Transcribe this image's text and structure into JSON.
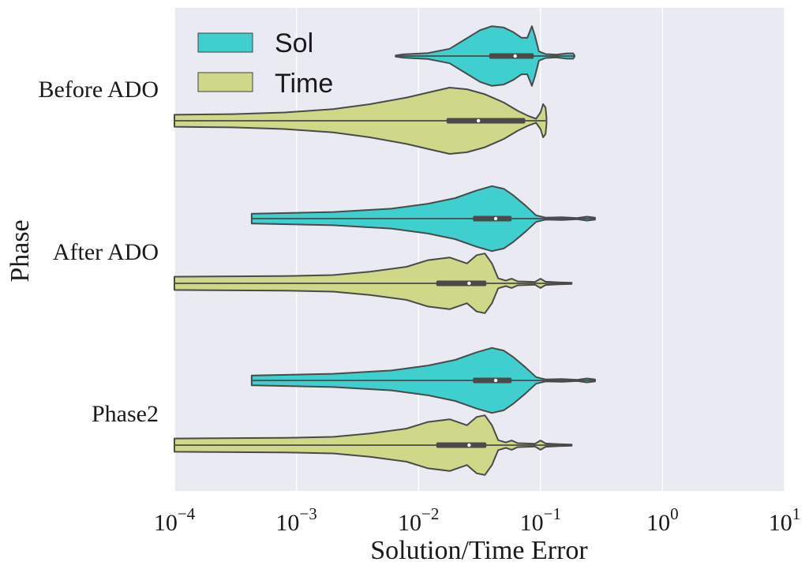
{
  "chart_data": {
    "type": "violin",
    "orientation": "horizontal",
    "xscale": "log",
    "xlabel": "Solution/Time Error",
    "ylabel": "Phase",
    "xlim": [
      0.0001,
      10
    ],
    "x_ticks": [
      {
        "value": 0.0001,
        "base": "10",
        "exp": "−4"
      },
      {
        "value": 0.001,
        "base": "10",
        "exp": "−3"
      },
      {
        "value": 0.01,
        "base": "10",
        "exp": "−2"
      },
      {
        "value": 0.1,
        "base": "10",
        "exp": "−1"
      },
      {
        "value": 1,
        "base": "10",
        "exp": "0"
      },
      {
        "value": 10,
        "base": "10",
        "exp": "1"
      }
    ],
    "grid": true,
    "legend_position": "top-left",
    "colors": {
      "Sol": "#40cfcf",
      "Time": "#cfd789",
      "outline": "#4a4a4a",
      "background": "#e9eaf2",
      "grid": "#ffffff"
    },
    "categories": [
      "Before ADO",
      "After ADO",
      "Phase2"
    ],
    "series": [
      {
        "name": "Sol",
        "groups": [
          {
            "category": "Before ADO",
            "range": [
              0.0065,
              0.19
            ],
            "quartiles": [
              0.038,
              0.062,
              0.088
            ],
            "profile": [
              [
                0.0065,
                0.02
              ],
              [
                0.0075,
                0.05
              ],
              [
                0.012,
                0.09
              ],
              [
                0.018,
                0.22
              ],
              [
                0.024,
                0.5
              ],
              [
                0.032,
                0.78
              ],
              [
                0.04,
                0.9
              ],
              [
                0.05,
                0.86
              ],
              [
                0.06,
                0.72
              ],
              [
                0.07,
                0.55
              ],
              [
                0.078,
                0.55
              ],
              [
                0.085,
                0.9
              ],
              [
                0.09,
                0.62
              ],
              [
                0.097,
                0.14
              ],
              [
                0.11,
                0.06
              ],
              [
                0.135,
                0.04
              ],
              [
                0.165,
                0.08
              ],
              [
                0.185,
                0.08
              ],
              [
                0.19,
                0.02
              ]
            ]
          },
          {
            "category": "After ADO",
            "range": [
              0.00043,
              0.28
            ],
            "quartiles": [
              0.028,
              0.043,
              0.058
            ],
            "profile": [
              [
                0.00043,
                0.15
              ],
              [
                0.00045,
                0.15
              ],
              [
                0.002,
                0.2
              ],
              [
                0.006,
                0.3
              ],
              [
                0.012,
                0.45
              ],
              [
                0.02,
                0.62
              ],
              [
                0.03,
                0.85
              ],
              [
                0.04,
                0.98
              ],
              [
                0.05,
                0.9
              ],
              [
                0.06,
                0.7
              ],
              [
                0.075,
                0.4
              ],
              [
                0.092,
                0.1
              ],
              [
                0.11,
                0.03
              ],
              [
                0.15,
                0.04
              ],
              [
                0.2,
                0.02
              ],
              [
                0.24,
                0.06
              ],
              [
                0.28,
                0.03
              ]
            ]
          },
          {
            "category": "Phase2",
            "range": [
              0.00043,
              0.28
            ],
            "quartiles": [
              0.028,
              0.043,
              0.058
            ],
            "profile": [
              [
                0.00043,
                0.15
              ],
              [
                0.00045,
                0.15
              ],
              [
                0.002,
                0.2
              ],
              [
                0.006,
                0.3
              ],
              [
                0.012,
                0.45
              ],
              [
                0.02,
                0.62
              ],
              [
                0.03,
                0.85
              ],
              [
                0.04,
                0.98
              ],
              [
                0.05,
                0.9
              ],
              [
                0.06,
                0.7
              ],
              [
                0.075,
                0.4
              ],
              [
                0.092,
                0.1
              ],
              [
                0.11,
                0.03
              ],
              [
                0.15,
                0.04
              ],
              [
                0.2,
                0.02
              ],
              [
                0.24,
                0.06
              ],
              [
                0.28,
                0.03
              ]
            ]
          }
        ]
      },
      {
        "name": "Time",
        "groups": [
          {
            "category": "Before ADO",
            "range": [
              0.0001,
              0.11
            ],
            "quartiles": [
              0.017,
              0.031,
              0.075
            ],
            "profile": [
              [
                0.0001,
                0.18
              ],
              [
                0.0003,
                0.2
              ],
              [
                0.0008,
                0.25
              ],
              [
                0.002,
                0.35
              ],
              [
                0.004,
                0.5
              ],
              [
                0.008,
                0.7
              ],
              [
                0.013,
                0.88
              ],
              [
                0.018,
                1.0
              ],
              [
                0.025,
                0.95
              ],
              [
                0.035,
                0.8
              ],
              [
                0.05,
                0.55
              ],
              [
                0.065,
                0.3
              ],
              [
                0.08,
                0.14
              ],
              [
                0.092,
                0.06
              ],
              [
                0.1,
                0.25
              ],
              [
                0.105,
                0.5
              ],
              [
                0.11,
                0.4
              ],
              [
                0.112,
                0.1
              ]
            ]
          },
          {
            "category": "After ADO",
            "range": [
              0.0001,
              0.18
            ],
            "quartiles": [
              0.014,
              0.026,
              0.036
            ],
            "profile": [
              [
                0.0001,
                0.2
              ],
              [
                0.0008,
                0.22
              ],
              [
                0.002,
                0.25
              ],
              [
                0.004,
                0.35
              ],
              [
                0.008,
                0.5
              ],
              [
                0.012,
                0.7
              ],
              [
                0.018,
                0.78
              ],
              [
                0.025,
                0.6
              ],
              [
                0.03,
                0.85
              ],
              [
                0.035,
                0.9
              ],
              [
                0.04,
                0.6
              ],
              [
                0.045,
                0.15
              ],
              [
                0.052,
                0.08
              ],
              [
                0.058,
                0.14
              ],
              [
                0.065,
                0.06
              ],
              [
                0.078,
                0.05
              ],
              [
                0.09,
                0.04
              ],
              [
                0.1,
                0.14
              ],
              [
                0.11,
                0.05
              ],
              [
                0.14,
                0.03
              ],
              [
                0.18,
                0.02
              ]
            ]
          },
          {
            "category": "Phase2",
            "range": [
              0.0001,
              0.18
            ],
            "quartiles": [
              0.014,
              0.026,
              0.036
            ],
            "profile": [
              [
                0.0001,
                0.2
              ],
              [
                0.0008,
                0.22
              ],
              [
                0.002,
                0.25
              ],
              [
                0.004,
                0.35
              ],
              [
                0.008,
                0.5
              ],
              [
                0.012,
                0.7
              ],
              [
                0.018,
                0.78
              ],
              [
                0.025,
                0.6
              ],
              [
                0.03,
                0.85
              ],
              [
                0.035,
                0.9
              ],
              [
                0.04,
                0.6
              ],
              [
                0.045,
                0.15
              ],
              [
                0.052,
                0.08
              ],
              [
                0.058,
                0.14
              ],
              [
                0.065,
                0.06
              ],
              [
                0.078,
                0.05
              ],
              [
                0.09,
                0.04
              ],
              [
                0.1,
                0.14
              ],
              [
                0.11,
                0.05
              ],
              [
                0.14,
                0.03
              ],
              [
                0.18,
                0.02
              ]
            ]
          }
        ]
      }
    ]
  }
}
